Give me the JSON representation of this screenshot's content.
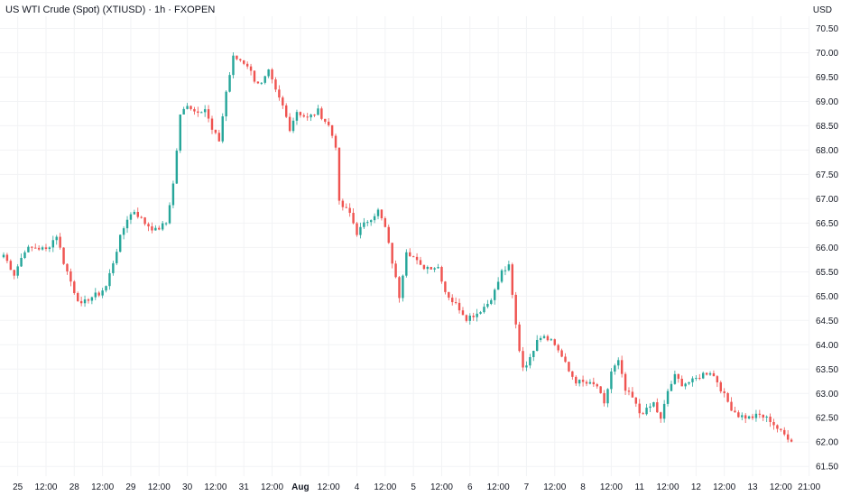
{
  "header": {
    "title": "US WTI Crude (Spot) (XTIUSD) · 1h · FXOPEN",
    "currency": "USD"
  },
  "colors": {
    "up": "#26a69a",
    "down": "#ef5350",
    "grid": "#f2f3f5",
    "text": "#131722",
    "bg": "#ffffff"
  },
  "chart_data": {
    "type": "candlestick",
    "y_ticks": [
      "70.50",
      "70.00",
      "69.50",
      "69.00",
      "68.50",
      "68.00",
      "67.50",
      "67.00",
      "66.50",
      "66.00",
      "65.50",
      "65.00",
      "64.50",
      "64.00",
      "63.50",
      "63.00",
      "62.50",
      "62.00",
      "61.50"
    ],
    "ylim": [
      61.3,
      70.75
    ],
    "x_ticks": [
      {
        "label": "25",
        "i": 4
      },
      {
        "label": "12:00",
        "i": 12
      },
      {
        "label": "28",
        "i": 20
      },
      {
        "label": "12:00",
        "i": 28
      },
      {
        "label": "29",
        "i": 36
      },
      {
        "label": "12:00",
        "i": 44
      },
      {
        "label": "30",
        "i": 52
      },
      {
        "label": "12:00",
        "i": 60
      },
      {
        "label": "31",
        "i": 68
      },
      {
        "label": "12:00",
        "i": 76
      },
      {
        "label": "Aug",
        "i": 84,
        "bold": true
      },
      {
        "label": "12:00",
        "i": 92
      },
      {
        "label": "4",
        "i": 100
      },
      {
        "label": "12:00",
        "i": 108
      },
      {
        "label": "5",
        "i": 116
      },
      {
        "label": "12:00",
        "i": 124
      },
      {
        "label": "6",
        "i": 132
      },
      {
        "label": "12:00",
        "i": 140
      },
      {
        "label": "7",
        "i": 148
      },
      {
        "label": "12:00",
        "i": 156
      },
      {
        "label": "8",
        "i": 164
      },
      {
        "label": "12:00",
        "i": 172
      },
      {
        "label": "11",
        "i": 180
      },
      {
        "label": "12:00",
        "i": 188
      },
      {
        "label": "12",
        "i": 196
      },
      {
        "label": "12:00",
        "i": 204
      },
      {
        "label": "13",
        "i": 212
      },
      {
        "label": "12:00",
        "i": 220
      },
      {
        "label": "21:00",
        "i": 228
      }
    ],
    "candle_count": 224,
    "close_path": [
      [
        0,
        65.85
      ],
      [
        3,
        65.45
      ],
      [
        6,
        65.95
      ],
      [
        9,
        66.0
      ],
      [
        12,
        65.95
      ],
      [
        15,
        66.25
      ],
      [
        17,
        65.7
      ],
      [
        20,
        65.1
      ],
      [
        22,
        64.8
      ],
      [
        24,
        64.95
      ],
      [
        27,
        65.05
      ],
      [
        29,
        65.2
      ],
      [
        31,
        65.7
      ],
      [
        33,
        66.2
      ],
      [
        35,
        66.6
      ],
      [
        37,
        66.75
      ],
      [
        40,
        66.5
      ],
      [
        43,
        66.35
      ],
      [
        46,
        66.5
      ],
      [
        48,
        67.3
      ],
      [
        50,
        68.7
      ],
      [
        52,
        68.95
      ],
      [
        54,
        68.8
      ],
      [
        57,
        68.85
      ],
      [
        59,
        68.4
      ],
      [
        61,
        68.2
      ],
      [
        63,
        69.2
      ],
      [
        65,
        69.9
      ],
      [
        67,
        69.85
      ],
      [
        69,
        69.75
      ],
      [
        71,
        69.45
      ],
      [
        73,
        69.35
      ],
      [
        75,
        69.6
      ],
      [
        77,
        69.2
      ],
      [
        79,
        68.9
      ],
      [
        81,
        68.45
      ],
      [
        83,
        68.8
      ],
      [
        86,
        68.65
      ],
      [
        89,
        68.8
      ],
      [
        92,
        68.5
      ],
      [
        94,
        68.1
      ],
      [
        95,
        66.9
      ],
      [
        98,
        66.7
      ],
      [
        100,
        66.3
      ],
      [
        103,
        66.55
      ],
      [
        106,
        66.75
      ],
      [
        108,
        66.4
      ],
      [
        110,
        65.7
      ],
      [
        112,
        65.0
      ],
      [
        114,
        65.95
      ],
      [
        116,
        65.8
      ],
      [
        118,
        65.6
      ],
      [
        121,
        65.6
      ],
      [
        123,
        65.6
      ],
      [
        125,
        65.1
      ],
      [
        127,
        64.9
      ],
      [
        129,
        64.75
      ],
      [
        131,
        64.55
      ],
      [
        134,
        64.65
      ],
      [
        137,
        64.85
      ],
      [
        139,
        65.1
      ],
      [
        141,
        65.5
      ],
      [
        143,
        65.6
      ],
      [
        145,
        64.4
      ],
      [
        146,
        63.9
      ],
      [
        147,
        63.55
      ],
      [
        149,
        63.7
      ],
      [
        151,
        64.15
      ],
      [
        153,
        64.2
      ],
      [
        155,
        64.1
      ],
      [
        157,
        63.9
      ],
      [
        160,
        63.45
      ],
      [
        162,
        63.25
      ],
      [
        165,
        63.2
      ],
      [
        168,
        63.15
      ],
      [
        170,
        62.75
      ],
      [
        172,
        63.45
      ],
      [
        174,
        63.65
      ],
      [
        176,
        63.05
      ],
      [
        178,
        62.9
      ],
      [
        180,
        62.6
      ],
      [
        182,
        62.65
      ],
      [
        184,
        62.8
      ],
      [
        186,
        62.45
      ],
      [
        188,
        63.05
      ],
      [
        190,
        63.35
      ],
      [
        192,
        63.2
      ],
      [
        195,
        63.25
      ],
      [
        198,
        63.4
      ],
      [
        200,
        63.45
      ],
      [
        202,
        63.25
      ],
      [
        204,
        62.95
      ],
      [
        206,
        62.7
      ],
      [
        208,
        62.55
      ],
      [
        211,
        62.5
      ],
      [
        214,
        62.55
      ],
      [
        217,
        62.45
      ],
      [
        220,
        62.2
      ],
      [
        223,
        62.05
      ]
    ]
  }
}
